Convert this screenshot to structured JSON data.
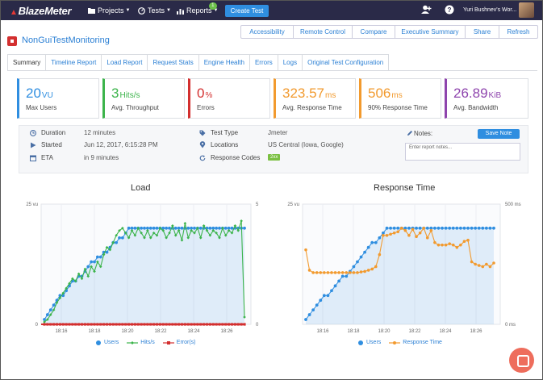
{
  "topbar": {
    "logo": "BlazeMeter",
    "nav": {
      "projects": "Projects",
      "tests": "Tests",
      "reports": "Reports",
      "reports_badge": "1"
    },
    "create_test": "Create Test",
    "user_name": "Yuri Bushnev's Wor..."
  },
  "page": {
    "title": "NonGuiTestMonitoring"
  },
  "actions": [
    "Accessibility",
    "Remote Control",
    "Compare",
    "Executive Summary",
    "Share",
    "Refresh"
  ],
  "tabs": [
    "Summary",
    "Timeline Report",
    "Load Report",
    "Request Stats",
    "Engine Health",
    "Errors",
    "Logs",
    "Original Test Configuration"
  ],
  "stats": [
    {
      "value": "20",
      "unit": "VU",
      "label": "Max Users",
      "color": "#2f8ee0"
    },
    {
      "value": "3",
      "unit": "Hits/s",
      "label": "Avg. Throughput",
      "color": "#3cb44b"
    },
    {
      "value": "0",
      "unit": "%",
      "label": "Errors",
      "color": "#d32f2f"
    },
    {
      "value": "323.57",
      "unit": "ms",
      "label": "Avg. Response Time",
      "color": "#f29a2e"
    },
    {
      "value": "506",
      "unit": "ms",
      "label": "90% Response Time",
      "color": "#f29a2e"
    },
    {
      "value": "26.89",
      "unit": "KiB",
      "label": "Avg. Bandwidth",
      "color": "#8e44ad"
    }
  ],
  "info": {
    "duration_label": "Duration",
    "duration": "12 minutes",
    "started_label": "Started",
    "started": "Jun 12, 2017, 6:15:28 PM",
    "eta_label": "ETA",
    "eta": "in 9 minutes",
    "test_type_label": "Test Type",
    "test_type": "Jmeter",
    "locations_label": "Locations",
    "locations": "US Central (Iowa, Google)",
    "response_codes_label": "Response Codes",
    "response_code": "2xx",
    "notes_label": "Notes:",
    "save_note": "Save Note",
    "notes_placeholder": "Enter report notes..."
  },
  "colors": {
    "users": "#2f8ee0",
    "hits": "#3cb44b",
    "errors": "#d32f2f",
    "response": "#f29a2e"
  },
  "chart_data": [
    {
      "type": "line",
      "title": "Load",
      "x_ticks": [
        "18:16",
        "18:18",
        "18:20",
        "18:22",
        "18:24",
        "18:26"
      ],
      "y_left_label": "25 vu",
      "y_left_min": "0",
      "ylim_left": [
        0,
        25
      ],
      "y_right_label": "5",
      "y_right_min": "0",
      "ylim_right": [
        0,
        5
      ],
      "series": [
        {
          "name": "Users",
          "axis": "left",
          "values": [
            1,
            2,
            3,
            4,
            5,
            6,
            6,
            7,
            8,
            9,
            9,
            10,
            10,
            11,
            12,
            13,
            13,
            14,
            14,
            15,
            15,
            16,
            17,
            17,
            18,
            18,
            19,
            20,
            20,
            20,
            20,
            20,
            20,
            20,
            20,
            20,
            20,
            20,
            20,
            20,
            20,
            20,
            20,
            20,
            20,
            20,
            20,
            20,
            20,
            20,
            20,
            20,
            20,
            20,
            20,
            20,
            20,
            20,
            20,
            20,
            20,
            20,
            20,
            20,
            20
          ]
        },
        {
          "name": "Hits/s",
          "axis": "right",
          "values": [
            0.1,
            0.2,
            0.4,
            0.6,
            0.9,
            1.1,
            1.3,
            1.5,
            1.7,
            1.9,
            1.8,
            2.1,
            1.9,
            2.3,
            2.0,
            2.4,
            2.2,
            2.6,
            2.4,
            2.9,
            3.2,
            3.1,
            3.4,
            3.7,
            3.9,
            4.0,
            3.8,
            3.6,
            3.9,
            3.7,
            4.0,
            3.8,
            3.6,
            3.9,
            3.6,
            3.8,
            3.7,
            4.0,
            3.9,
            3.6,
            3.8,
            4.1,
            3.7,
            3.9,
            3.5,
            4.2,
            3.6,
            3.9,
            3.8,
            4.0,
            3.6,
            4.1,
            3.9,
            3.7,
            3.9,
            3.8,
            3.6,
            4.0,
            3.7,
            3.9,
            3.8,
            4.1,
            3.9,
            4.3,
            0.3
          ]
        },
        {
          "name": "Error(s)",
          "axis": "right",
          "values": [
            0,
            0,
            0,
            0,
            0,
            0,
            0,
            0,
            0,
            0,
            0,
            0,
            0,
            0,
            0,
            0,
            0,
            0,
            0,
            0,
            0,
            0,
            0,
            0,
            0,
            0,
            0,
            0,
            0,
            0,
            0,
            0,
            0,
            0,
            0,
            0,
            0,
            0,
            0,
            0,
            0,
            0,
            0,
            0,
            0,
            0,
            0,
            0,
            0,
            0,
            0,
            0,
            0,
            0,
            0,
            0,
            0,
            0,
            0,
            0,
            0,
            0,
            0,
            0,
            0
          ]
        }
      ]
    },
    {
      "type": "line",
      "title": "Response Time",
      "x_ticks": [
        "18:16",
        "18:18",
        "18:20",
        "18:22",
        "18:24",
        "18:26"
      ],
      "y_left_label": "25 vu",
      "ylim_left": [
        0,
        25
      ],
      "y_right_label": "500 ms",
      "y_right_min": "0 ms",
      "ylim_right": [
        0,
        500
      ],
      "series": [
        {
          "name": "Users",
          "axis": "left",
          "values": [
            1,
            2,
            3,
            4,
            5,
            6,
            6,
            7,
            8,
            9,
            10,
            10,
            11,
            12,
            13,
            14,
            15,
            16,
            17,
            17,
            18,
            19,
            20,
            20,
            20,
            20,
            20,
            20,
            20,
            20,
            20,
            20,
            20,
            20,
            20,
            20,
            20,
            20,
            20,
            20,
            20,
            20,
            20,
            20,
            20,
            20,
            20,
            20,
            20,
            20,
            20,
            20
          ]
        },
        {
          "name": "Response Time",
          "axis": "right",
          "values": [
            310,
            225,
            215,
            215,
            215,
            215,
            215,
            215,
            215,
            215,
            215,
            215,
            215,
            215,
            215,
            218,
            220,
            225,
            230,
            240,
            290,
            370,
            370,
            375,
            380,
            385,
            400,
            390,
            370,
            395,
            365,
            380,
            400,
            360,
            390,
            340,
            330,
            330,
            330,
            335,
            330,
            320,
            330,
            345,
            350,
            260,
            250,
            245,
            240,
            250,
            240,
            255
          ]
        }
      ]
    }
  ]
}
